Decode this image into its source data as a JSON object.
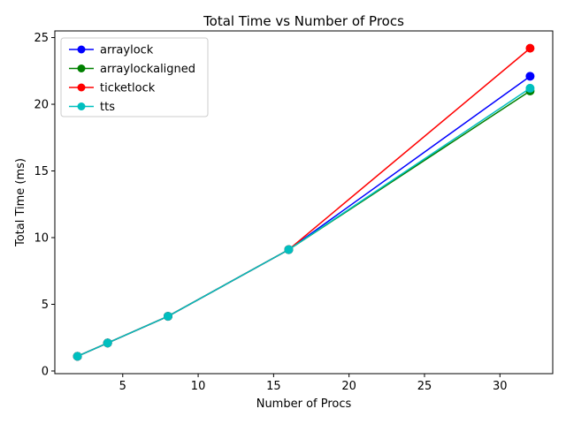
{
  "chart_data": {
    "type": "line",
    "title": "Total Time vs Number of Procs",
    "xlabel": "Number of Procs",
    "ylabel": "Total Time (ms)",
    "xlim": [
      0.5,
      33.5
    ],
    "ylim": [
      -0.2,
      25.5
    ],
    "xticks": [
      5,
      10,
      15,
      20,
      25,
      30
    ],
    "yticks": [
      0,
      5,
      10,
      15,
      20,
      25
    ],
    "grid": false,
    "legend_position": "top-left",
    "x": [
      2,
      4,
      8,
      16,
      32
    ],
    "series": [
      {
        "name": "arraylock",
        "color": "#0000ff",
        "values": [
          1.1,
          2.1,
          4.1,
          9.1,
          22.1
        ]
      },
      {
        "name": "arraylockaligned",
        "color": "#008000",
        "values": [
          1.1,
          2.1,
          4.1,
          9.1,
          21.0
        ]
      },
      {
        "name": "ticketlock",
        "color": "#ff0000",
        "values": [
          1.1,
          2.1,
          4.1,
          9.1,
          24.2
        ]
      },
      {
        "name": "tts",
        "color": "#00bfbf",
        "values": [
          1.1,
          2.1,
          4.1,
          9.1,
          21.2
        ]
      }
    ]
  }
}
